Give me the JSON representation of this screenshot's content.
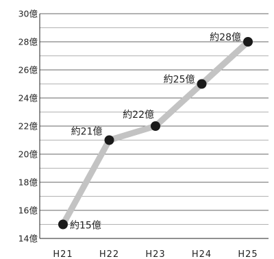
{
  "chart_data": {
    "type": "line",
    "categories": [
      "H21",
      "H22",
      "H23",
      "H24",
      "H25"
    ],
    "values": [
      15,
      21,
      22,
      25,
      28
    ],
    "data_labels": [
      "約15億",
      "約21億",
      "約22億",
      "約25億",
      "約28億"
    ],
    "y_tick_labels": [
      "14億",
      "16億",
      "18億",
      "20億",
      "22億",
      "24億",
      "26億",
      "28億",
      "30億"
    ],
    "ylim": [
      14,
      30
    ],
    "grid": true,
    "line_color": "#c3c3c3",
    "marker_color": "#1a1a1a",
    "grid_color": "#666666"
  }
}
